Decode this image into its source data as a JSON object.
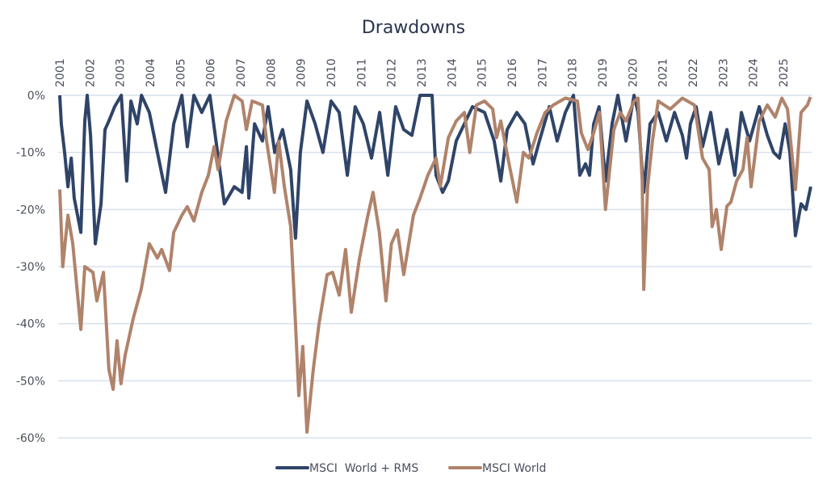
{
  "chart_data": {
    "type": "line",
    "title": "Drawdowns",
    "xlabel": "",
    "ylabel": "",
    "xlim": [
      2001,
      2026
    ],
    "ylim": [
      -60,
      0
    ],
    "x_ticks": [
      "2001",
      "2002",
      "2003",
      "2004",
      "2005",
      "2006",
      "2007",
      "2008",
      "2009",
      "2010",
      "2011",
      "2012",
      "2013",
      "2014",
      "2015",
      "2016",
      "2017",
      "2018",
      "2019",
      "2020",
      "2021",
      "2022",
      "2023",
      "2024",
      "2025"
    ],
    "x_axis_position": "top",
    "y_ticks": [
      0,
      -10,
      -20,
      -30,
      -40,
      -50,
      -60
    ],
    "y_tick_labels": [
      "0%",
      "-10%",
      "-20%",
      "-30%",
      "-40%",
      "-50%",
      "-60%"
    ],
    "grid": "horizontal",
    "legend_position": "bottom",
    "series": [
      {
        "name": "MSCI  World + RMS",
        "color": "#2f4468",
        "x": [
          2001.0,
          2001.05,
          2001.16,
          2001.27,
          2001.38,
          2001.48,
          2001.7,
          2001.83,
          2001.91,
          2002.02,
          2002.18,
          2002.37,
          2002.5,
          2002.63,
          2002.82,
          2003.04,
          2003.22,
          2003.36,
          2003.57,
          2003.71,
          2003.97,
          2004.24,
          2004.51,
          2004.78,
          2005.05,
          2005.23,
          2005.45,
          2005.71,
          2005.98,
          2006.46,
          2006.79,
          2007.05,
          2007.19,
          2007.27,
          2007.46,
          2007.72,
          2007.91,
          2008.13,
          2008.39,
          2008.66,
          2008.82,
          2008.98,
          2009.2,
          2009.47,
          2009.73,
          2010.0,
          2010.27,
          2010.54,
          2010.8,
          2011.07,
          2011.34,
          2011.61,
          2011.88,
          2012.14,
          2012.41,
          2012.68,
          2012.95,
          2013.35,
          2013.48,
          2013.7,
          2013.89,
          2014.15,
          2014.42,
          2014.69,
          2015.09,
          2015.41,
          2015.63,
          2015.84,
          2016.16,
          2016.43,
          2016.7,
          2016.91,
          2017.24,
          2017.5,
          2017.77,
          2018.04,
          2018.25,
          2018.44,
          2018.57,
          2018.71,
          2018.89,
          2019.1,
          2019.32,
          2019.51,
          2019.78,
          2020.05,
          2020.18,
          2020.37,
          2020.58,
          2020.85,
          2021.12,
          2021.39,
          2021.65,
          2021.79,
          2021.92,
          2022.11,
          2022.32,
          2022.59,
          2022.86,
          2023.13,
          2023.39,
          2023.61,
          2023.88,
          2024.2,
          2024.47,
          2024.68,
          2024.87,
          2025.06,
          2025.22,
          2025.4,
          2025.59,
          2025.75,
          2025.91
        ],
        "values": [
          0,
          -5,
          -10,
          -16,
          -11,
          -18,
          -24,
          -4.5,
          0,
          -7,
          -26,
          -19,
          -6,
          -4.5,
          -2,
          0,
          -15,
          -1,
          -5,
          0,
          -3,
          -10,
          -17,
          -5,
          0,
          -9,
          0,
          -3,
          0,
          -19,
          -16,
          -17,
          -9,
          -18,
          -5,
          -8,
          -2,
          -10,
          -6,
          -13,
          -25,
          -10,
          -1,
          -5,
          -10,
          -1,
          -3,
          -14,
          -2,
          -5,
          -11,
          -3,
          -14,
          -2,
          -6,
          -7,
          0,
          0,
          -14,
          -17,
          -15,
          -8,
          -5,
          -2,
          -3,
          -8,
          -15,
          -6,
          -3,
          -5,
          -12,
          -8,
          -2,
          -8,
          -3,
          0,
          -14,
          -12,
          -14,
          -5,
          -2,
          -15,
          -5,
          0,
          -8,
          0,
          -3,
          -17,
          -5,
          -3,
          -8,
          -3,
          -7,
          -11,
          -5,
          -2,
          -9,
          -3,
          -12,
          -6,
          -14,
          -3,
          -8,
          -2,
          -7,
          -10,
          -11,
          -5,
          -10,
          -24.6,
          -19,
          -20,
          -16
        ]
      },
      {
        "name": "MSCI World",
        "color": "#b0836b",
        "x": [
          2001.0,
          2001.1,
          2001.27,
          2001.43,
          2001.7,
          2001.83,
          2002.1,
          2002.23,
          2002.45,
          2002.63,
          2002.77,
          2002.9,
          2003.03,
          2003.17,
          2003.44,
          2003.7,
          2003.97,
          2004.24,
          2004.38,
          2004.64,
          2004.78,
          2005.05,
          2005.23,
          2005.45,
          2005.71,
          2005.93,
          2006.12,
          2006.25,
          2006.52,
          2006.79,
          2007.05,
          2007.19,
          2007.38,
          2007.72,
          2007.86,
          2008.12,
          2008.26,
          2008.45,
          2008.66,
          2008.82,
          2008.93,
          2009.06,
          2009.2,
          2009.41,
          2009.6,
          2009.87,
          2010.05,
          2010.27,
          2010.48,
          2010.67,
          2010.94,
          2011.2,
          2011.39,
          2011.6,
          2011.82,
          2012.0,
          2012.2,
          2012.41,
          2012.73,
          2012.95,
          2013.21,
          2013.48,
          2013.62,
          2013.89,
          2014.15,
          2014.42,
          2014.6,
          2014.82,
          2015.09,
          2015.36,
          2015.49,
          2015.63,
          2015.89,
          2016.16,
          2016.38,
          2016.56,
          2016.83,
          2017.1,
          2017.37,
          2017.77,
          2018.17,
          2018.3,
          2018.52,
          2018.71,
          2018.9,
          2019.1,
          2019.38,
          2019.59,
          2019.78,
          2020.05,
          2020.18,
          2020.32,
          2020.37,
          2020.5,
          2020.66,
          2020.85,
          2021.25,
          2021.65,
          2022.05,
          2022.32,
          2022.54,
          2022.64,
          2022.78,
          2022.94,
          2023.13,
          2023.26,
          2023.45,
          2023.66,
          2023.8,
          2023.93,
          2024.2,
          2024.47,
          2024.73,
          2024.95,
          2025.14,
          2025.4,
          2025.59,
          2025.8,
          2025.9
        ],
        "values": [
          -16.5,
          -30,
          -21,
          -26,
          -41,
          -30,
          -31,
          -36,
          -31,
          -48,
          -51.5,
          -43,
          -50.5,
          -45.5,
          -39,
          -34,
          -26,
          -28.5,
          -27,
          -30.7,
          -24,
          -21,
          -19.5,
          -22,
          -17,
          -14,
          -9,
          -13,
          -4.5,
          0,
          -1,
          -6,
          -1,
          -1.7,
          -8,
          -17,
          -8,
          -16,
          -23,
          -40,
          -52.6,
          -44,
          -59,
          -48,
          -40,
          -31.4,
          -31,
          -35,
          -27,
          -38,
          -28.6,
          -21.5,
          -17,
          -24,
          -36,
          -26,
          -23.6,
          -31.4,
          -21,
          -18,
          -14,
          -11,
          -16,
          -7.4,
          -4.5,
          -3,
          -10,
          -1.7,
          -1,
          -2.4,
          -7.4,
          -4.5,
          -11.6,
          -18.7,
          -10,
          -11,
          -6.6,
          -3,
          -1.7,
          -0.5,
          -1,
          -6.6,
          -9.5,
          -6.6,
          -3,
          -20,
          -6,
          -3,
          -4.5,
          -1,
          -0.5,
          -15,
          -34,
          -16,
          -8,
          -1,
          -2.4,
          -0.5,
          -1.7,
          -11,
          -13,
          -23,
          -20,
          -27,
          -19.4,
          -18.7,
          -15,
          -13,
          -7.4,
          -16,
          -4.5,
          -1.7,
          -3.8,
          -0.5,
          -2.4,
          -16.5,
          -3,
          -1.7,
          -0.3
        ]
      }
    ]
  }
}
